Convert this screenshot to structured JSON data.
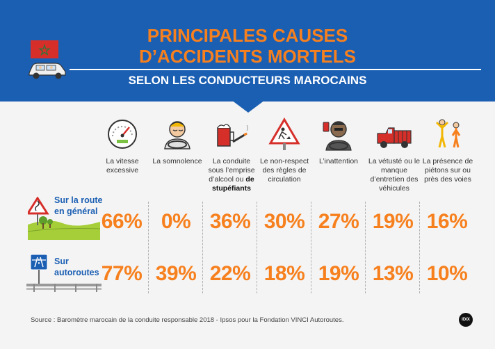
{
  "header": {
    "title_line1": "PRINCIPALES CAUSES",
    "title_line2": "D’ACCIDENTS MORTELS",
    "subtitle": "SELON LES CONDUCTEURS MAROCAINS"
  },
  "colors": {
    "header_bg": "#1b5fb3",
    "accent": "#f7801e",
    "road_label": "#1b5fb3"
  },
  "causes": [
    {
      "icon": "speedometer-icon",
      "label": "La vitesse excessive"
    },
    {
      "icon": "drowsy-driver-icon",
      "label": "La somnolence"
    },
    {
      "icon": "beer-cigarette-icon",
      "label": "La conduite sous l’emprise d’alcool ou",
      "label_bold": "de stupéfiants"
    },
    {
      "icon": "roadwork-sign-icon",
      "label": "Le non-respect des règles de circulation"
    },
    {
      "icon": "phone-driver-icon",
      "label": "L’inattention"
    },
    {
      "icon": "old-truck-icon",
      "label": "La vétusté ou le manque d’entretien des véhicules"
    },
    {
      "icon": "pedestrians-icon",
      "label": "La présence de piétons sur ou près des voies"
    }
  ],
  "rows": [
    {
      "label_line1": "Sur la route",
      "label_line2": "en général",
      "icon": "road-curve-sign-icon",
      "values": [
        "66%",
        "0%",
        "36%",
        "30%",
        "27%",
        "19%",
        "16%"
      ]
    },
    {
      "label_line1": "Sur",
      "label_line2": "autoroutes",
      "icon": "motorway-sign-icon",
      "values": [
        "77%",
        "39%",
        "22%",
        "18%",
        "19%",
        "13%",
        "10%"
      ]
    }
  ],
  "source": "Source : Baromètre marocain de la conduite responsable 2018 - Ipsos pour la Fondation VINCI Autoroutes.",
  "logo": "IDIX"
}
